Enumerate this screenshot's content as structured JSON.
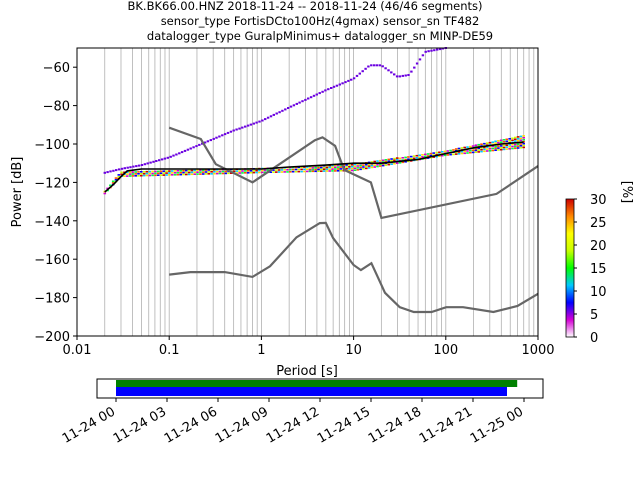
{
  "header": {
    "line1": "BK.BK66.00.HNZ   2018-11-24 -- 2018-11-24  (46/46 segments)",
    "line2": "sensor_type FortisDCto100Hz(4gmax) sensor_sn TF482",
    "line3": "datalogger_type GuralpMinimus+ datalogger_sn MINP-DE59"
  },
  "chart_data": {
    "type": "ppsd",
    "xlabel": "Period [s]",
    "ylabel": "Power [dB]",
    "x_scale": "log",
    "xlim": [
      0.01,
      1000
    ],
    "ylim": [
      -200,
      -50
    ],
    "x_ticks": [
      {
        "value": 0.01,
        "label": "0.01"
      },
      {
        "value": 0.1,
        "label": "0.1"
      },
      {
        "value": 1,
        "label": "1"
      },
      {
        "value": 10,
        "label": "10"
      },
      {
        "value": 100,
        "label": "100"
      },
      {
        "value": 1000,
        "label": "1000"
      }
    ],
    "y_ticks": [
      {
        "value": -60,
        "label": "−60"
      },
      {
        "value": -80,
        "label": "−80"
      },
      {
        "value": -100,
        "label": "−100"
      },
      {
        "value": -120,
        "label": "−120"
      },
      {
        "value": -140,
        "label": "−140"
      },
      {
        "value": -160,
        "label": "−160"
      },
      {
        "value": -180,
        "label": "−180"
      },
      {
        "value": -200,
        "label": "−200"
      }
    ],
    "grid": "vertical",
    "colorbar": {
      "label": "[%]",
      "range": [
        0,
        30
      ],
      "ticks": [
        {
          "value": 0,
          "label": "0"
        },
        {
          "value": 5,
          "label": "5"
        },
        {
          "value": 10,
          "label": "10"
        },
        {
          "value": 15,
          "label": "15"
        },
        {
          "value": 20,
          "label": "20"
        },
        {
          "value": 25,
          "label": "25"
        },
        {
          "value": 30,
          "label": "30"
        }
      ]
    },
    "noise_model_high": [
      [
        0.1,
        -91.5
      ],
      [
        0.22,
        -97.4
      ],
      [
        0.32,
        -110.5
      ],
      [
        0.8,
        -120
      ],
      [
        3.8,
        -98
      ],
      [
        4.6,
        -96.5
      ],
      [
        6.3,
        -101
      ],
      [
        7.9,
        -113.5
      ],
      [
        15.4,
        -120
      ],
      [
        20,
        -138.5
      ],
      [
        354.8,
        -126
      ],
      [
        1000,
        -111.5
      ]
    ],
    "noise_model_low": [
      [
        0.1,
        -168
      ],
      [
        0.17,
        -166.7
      ],
      [
        0.4,
        -166.7
      ],
      [
        0.8,
        -169.2
      ],
      [
        1.24,
        -163.7
      ],
      [
        2.4,
        -148.6
      ],
      [
        4.3,
        -141.2
      ],
      [
        5,
        -141.1
      ],
      [
        6,
        -149
      ],
      [
        10,
        -163
      ],
      [
        12,
        -165.7
      ],
      [
        15.6,
        -162.1
      ],
      [
        21.9,
        -177.5
      ],
      [
        31.6,
        -185
      ],
      [
        45,
        -187.5
      ],
      [
        70,
        -187.5
      ],
      [
        101,
        -185
      ],
      [
        154,
        -185
      ],
      [
        328,
        -187.5
      ],
      [
        600,
        -184.4
      ],
      [
        1000,
        -178
      ]
    ],
    "mean_curve": [
      [
        0.02,
        -125
      ],
      [
        0.025,
        -121
      ],
      [
        0.03,
        -117
      ],
      [
        0.035,
        -114
      ],
      [
        0.05,
        -113
      ],
      [
        0.1,
        -113
      ],
      [
        0.5,
        -113
      ],
      [
        1,
        -113
      ],
      [
        2,
        -112
      ],
      [
        5,
        -111
      ],
      [
        10,
        -110
      ],
      [
        20,
        -110
      ],
      [
        50,
        -108
      ],
      [
        100,
        -105
      ],
      [
        200,
        -102
      ],
      [
        400,
        -100
      ],
      [
        700,
        -99
      ]
    ],
    "upper_envelope": [
      [
        0.02,
        -115
      ],
      [
        0.03,
        -113
      ],
      [
        0.05,
        -111
      ],
      [
        0.1,
        -107
      ],
      [
        0.2,
        -101
      ],
      [
        0.5,
        -93
      ],
      [
        1,
        -88
      ],
      [
        2,
        -81
      ],
      [
        5,
        -72
      ],
      [
        10,
        -66
      ],
      [
        15,
        -59
      ],
      [
        20,
        -59
      ],
      [
        30,
        -65
      ],
      [
        40,
        -64
      ],
      [
        60,
        -52
      ],
      [
        100,
        -50
      ]
    ],
    "band_low_edge": [
      [
        0.02,
        -126
      ],
      [
        0.03,
        -117
      ],
      [
        1,
        -115
      ],
      [
        10,
        -114
      ],
      [
        100,
        -106
      ],
      [
        700,
        -102
      ]
    ],
    "band_high_edge": [
      [
        0.02,
        -124
      ],
      [
        0.03,
        -114
      ],
      [
        1,
        -112
      ],
      [
        10,
        -110
      ],
      [
        100,
        -103
      ],
      [
        700,
        -95
      ]
    ]
  },
  "timeline": {
    "tick_labels": [
      "11-24 00",
      "11-24 03",
      "11-24 06",
      "11-24 09",
      "11-24 12",
      "11-24 15",
      "11-24 18",
      "11-24 21",
      "11-25 00"
    ],
    "segments_end_hour": 23.6,
    "data_end_hour": 23.0
  }
}
